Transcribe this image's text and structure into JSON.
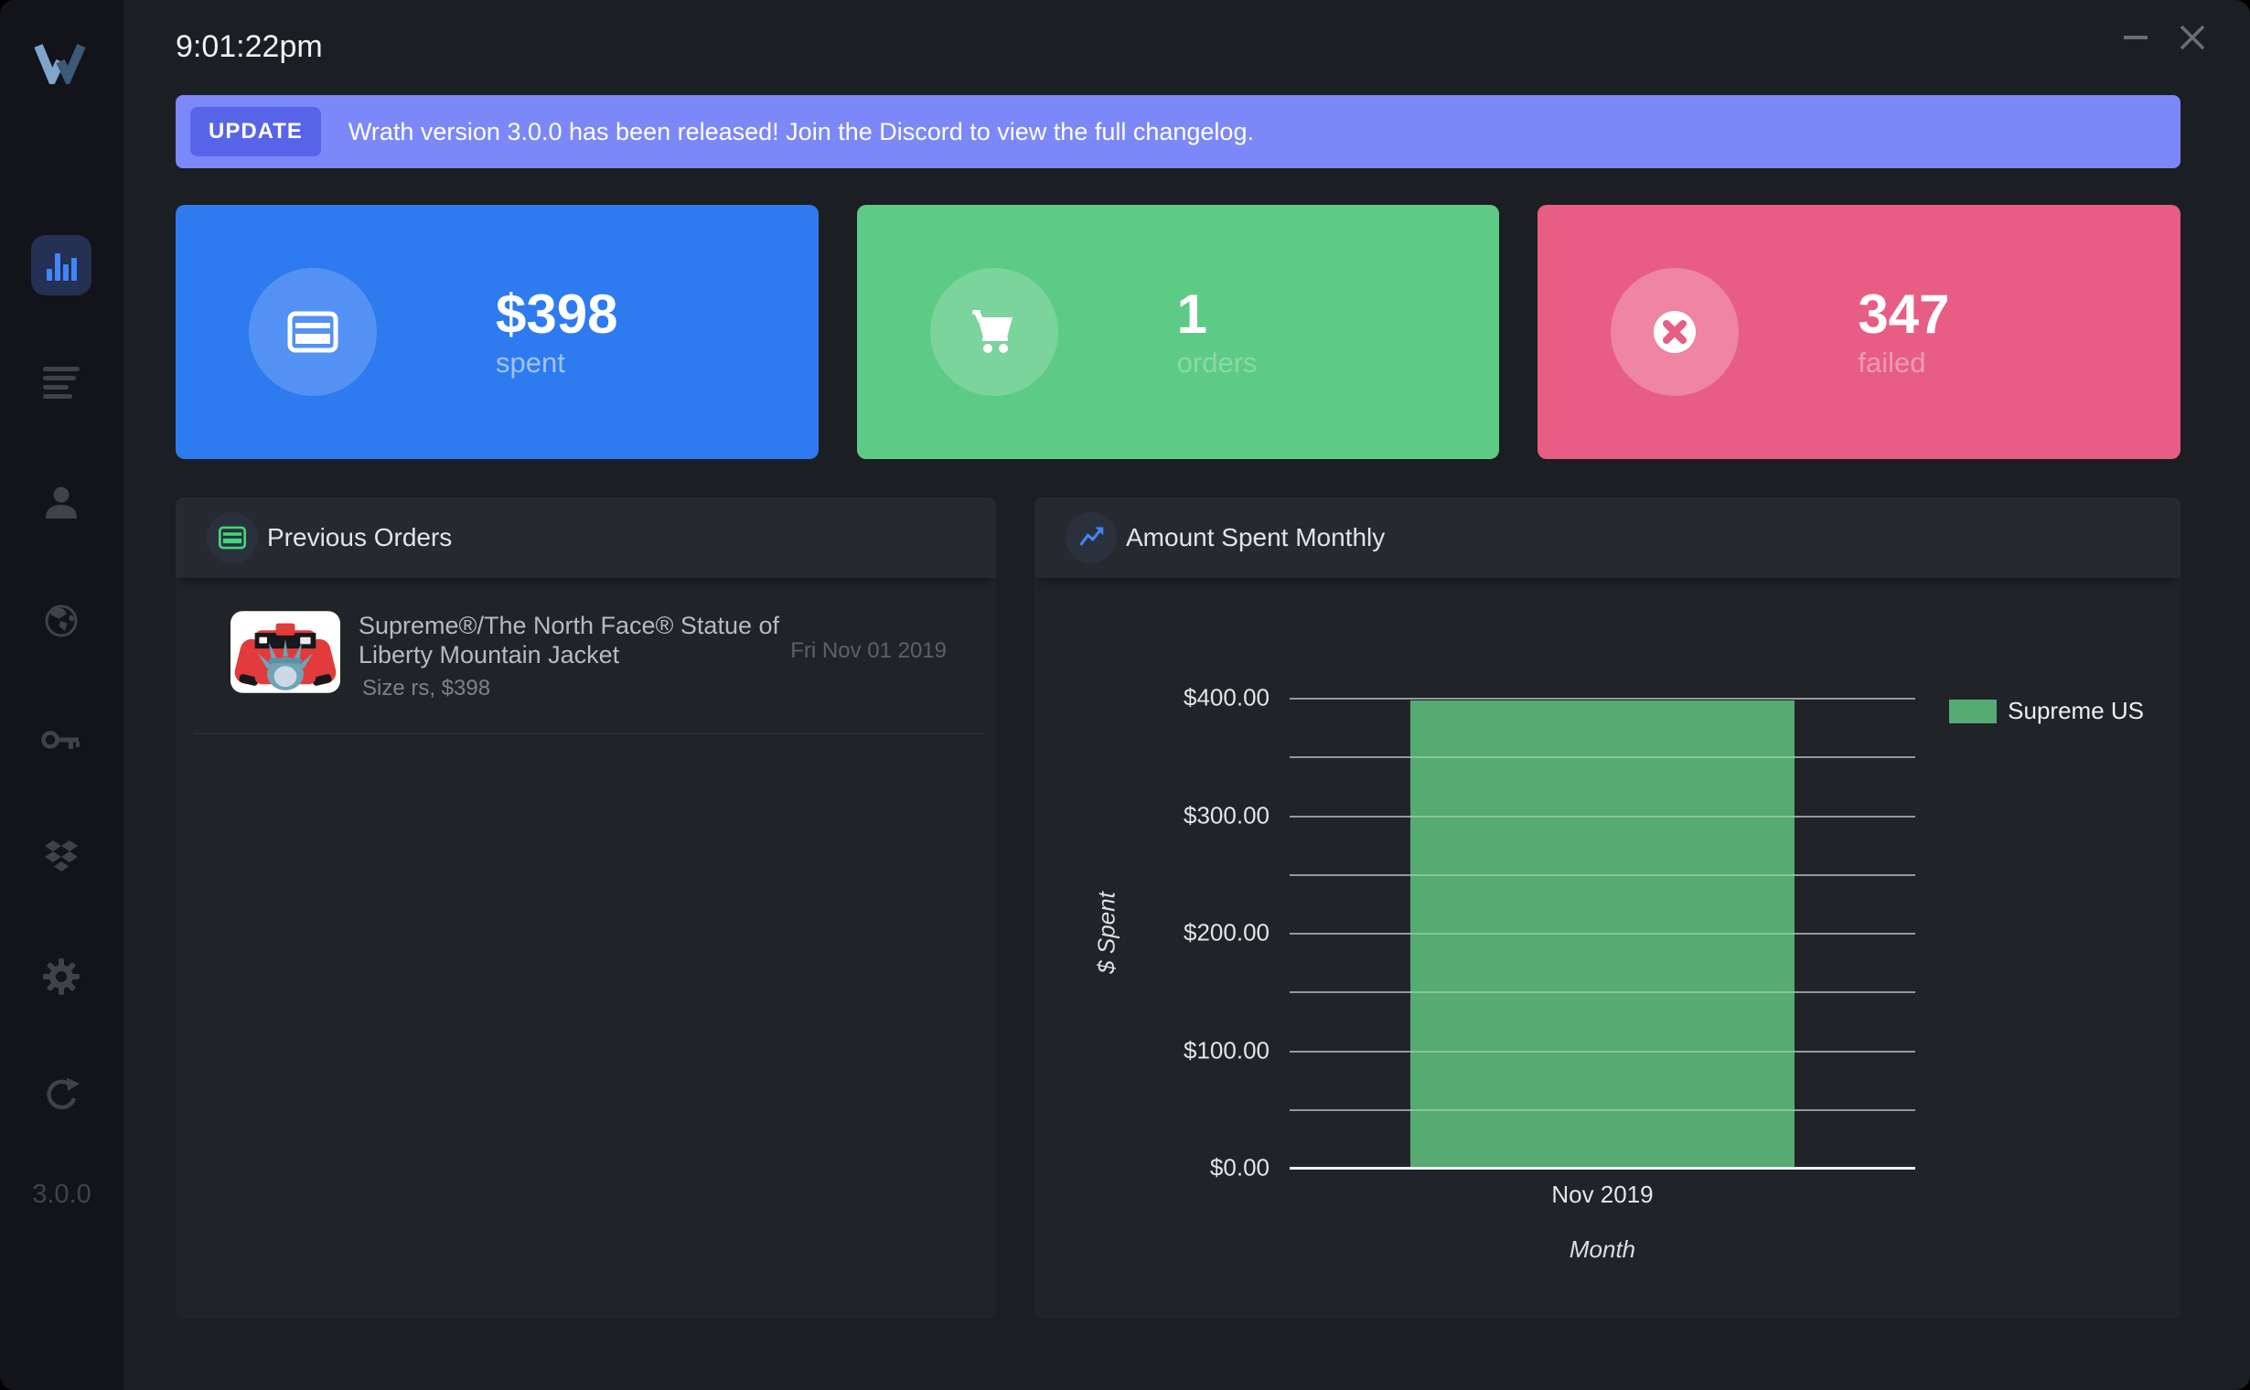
{
  "window": {
    "time": "9:01:22pm",
    "version": "3.0.0",
    "controls": {
      "minimize": "minimize",
      "close": "close"
    }
  },
  "sidebar": {
    "logo": "wrath-logo",
    "items": [
      {
        "icon": "bar-chart-icon",
        "active": true
      },
      {
        "icon": "queue-lines-icon",
        "active": false
      },
      {
        "icon": "person-icon",
        "active": false
      },
      {
        "icon": "globe-icon",
        "active": false
      },
      {
        "icon": "key-icon",
        "active": false
      },
      {
        "icon": "dropbox-icon",
        "active": false
      },
      {
        "icon": "gear-icon",
        "active": false
      },
      {
        "icon": "refresh-icon",
        "active": false
      }
    ]
  },
  "banner": {
    "badge": "UPDATE",
    "message": "Wrath version 3.0.0 has been released! Join the Discord to view the full changelog.",
    "bg": "#7c88f8",
    "badge_bg": "#5864e8"
  },
  "stats": [
    {
      "value": "$398",
      "label": "spent",
      "color": "#2e7bf0",
      "icon": "credit-card-icon"
    },
    {
      "value": "1",
      "label": "orders",
      "color": "#5dcb86",
      "icon": "shopping-cart-icon"
    },
    {
      "value": "347",
      "label": "failed",
      "color": "#e75d84",
      "icon": "x-circle-icon"
    }
  ],
  "previous_orders": {
    "title": "Previous Orders",
    "items": [
      {
        "title": "Supreme®/The North Face® Statue of Liberty Mountain Jacket",
        "date": "Fri Nov 01 2019",
        "details": "Size rs, $398"
      }
    ]
  },
  "chart_panel": {
    "title": "Amount Spent Monthly"
  },
  "chart_data": {
    "type": "bar",
    "title": "Amount Spent Monthly",
    "categories": [
      "Nov 2019"
    ],
    "series": [
      {
        "name": "Supreme US",
        "values": [
          398
        ],
        "color": "#55ab72"
      }
    ],
    "xlabel": "Month",
    "ylabel": "$ Spent",
    "ylim": [
      0,
      400
    ],
    "ytick_step": 100,
    "minor_step": 50,
    "ytick_labels": [
      "$0.00",
      "$100.00",
      "$200.00",
      "$300.00",
      "$400.00"
    ],
    "grid": true,
    "legend_position": "right-top"
  }
}
